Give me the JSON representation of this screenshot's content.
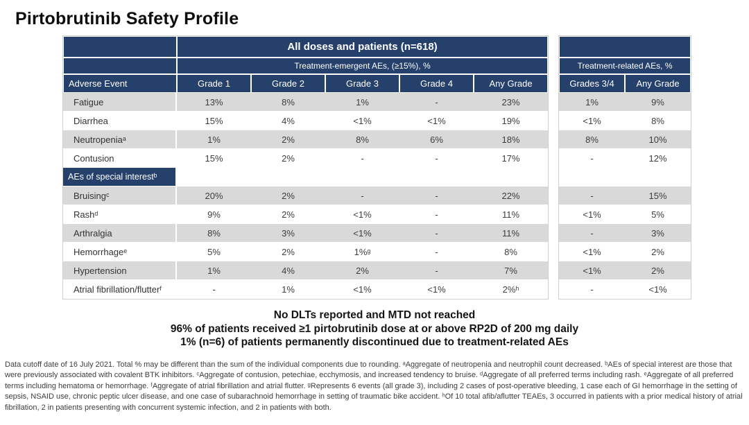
{
  "title": "Pirtobrutinib Safety Profile",
  "colors": {
    "header_navy": "#24406B",
    "stripe_gray": "#D9D9D9"
  },
  "table": {
    "left": {
      "span_header": "All doses and patients (n=618)",
      "sub_header": "Treatment-emergent AEs, (≥15%), %",
      "col_headers": [
        "Adverse Event",
        "Grade 1",
        "Grade 2",
        "Grade 3",
        "Grade 4",
        "Any Grade"
      ]
    },
    "right": {
      "sub_header": "Treatment-related AEs, %",
      "col_headers": [
        "Grades 3/4",
        "Any Grade"
      ]
    },
    "rows": [
      {
        "type": "data",
        "label": "Fatigue",
        "cells": [
          "13%",
          "8%",
          "1%",
          "-",
          "23%"
        ],
        "right": [
          "1%",
          "9%"
        ],
        "shaded": true
      },
      {
        "type": "data",
        "label": "Diarrhea",
        "cells": [
          "15%",
          "4%",
          "<1%",
          "<1%",
          "19%"
        ],
        "right": [
          "<1%",
          "8%"
        ],
        "shaded": false
      },
      {
        "type": "data",
        "label": "Neutropeniaᵃ",
        "cells": [
          "1%",
          "2%",
          "8%",
          "6%",
          "18%"
        ],
        "right": [
          "8%",
          "10%"
        ],
        "shaded": true
      },
      {
        "type": "data",
        "label": "Contusion",
        "cells": [
          "15%",
          "2%",
          "-",
          "-",
          "17%"
        ],
        "right": [
          "-",
          "12%"
        ],
        "shaded": false
      },
      {
        "type": "section",
        "label": "AEs of special interestᵇ"
      },
      {
        "type": "data",
        "label": "Bruisingᶜ",
        "cells": [
          "20%",
          "2%",
          "-",
          "-",
          "22%"
        ],
        "right": [
          "-",
          "15%"
        ],
        "shaded": true
      },
      {
        "type": "data",
        "label": "Rashᵈ",
        "cells": [
          "9%",
          "2%",
          "<1%",
          "-",
          "11%"
        ],
        "right": [
          "<1%",
          "5%"
        ],
        "shaded": false
      },
      {
        "type": "data",
        "label": "Arthralgia",
        "cells": [
          "8%",
          "3%",
          "<1%",
          "-",
          "11%"
        ],
        "right": [
          "-",
          "3%"
        ],
        "shaded": true
      },
      {
        "type": "data",
        "label": "Hemorrhageᵉ",
        "cells": [
          "5%",
          "2%",
          "1%ᵍ",
          "-",
          "8%"
        ],
        "right": [
          "<1%",
          "2%"
        ],
        "shaded": false
      },
      {
        "type": "data",
        "label": "Hypertension",
        "cells": [
          "1%",
          "4%",
          "2%",
          "-",
          "7%"
        ],
        "right": [
          "<1%",
          "2%"
        ],
        "shaded": true
      },
      {
        "type": "data",
        "label": "Atrial fibrillation/flutterᶠ",
        "cells": [
          "-",
          "1%",
          "<1%",
          "<1%",
          "2%ʰ"
        ],
        "right": [
          "-",
          "<1%"
        ],
        "shaded": false
      }
    ]
  },
  "summary": {
    "line1": "No DLTs reported and MTD not reached",
    "line2": "96% of patients received ≥1 pirtobrutinib dose at or above RP2D of 200 mg daily",
    "line3": "1% (n=6) of patients permanently discontinued due to treatment-related AEs"
  },
  "footnote": "Data cutoff date of 16 July 2021. Total % may be different than the sum of the individual components due to rounding. ᵃAggregate of neutropenia and neutrophil count decreased. ᵇAEs of special interest are those that were previously associated with covalent BTK inhibitors. ᶜAggregate of contusion, petechiae, ecchymosis, and increased tendency to bruise. ᵈAggregate of all preferred terms including rash. ᵉAggregate of all preferred terms including hematoma or hemorrhage. ᶠAggregate of atrial fibrillation and atrial flutter. ᵍRepresents 6 events (all grade 3), including 2 cases of post-operative bleeding, 1 case each of GI hemorrhage in the setting of sepsis, NSAID use, chronic peptic ulcer disease, and one case of subarachnoid hemorrhage in setting of traumatic bike accident. ʰOf 10 total afib/aflutter TEAEs, 3 occurred in patients with a prior medical history of atrial fibrillation, 2 in patients presenting with concurrent systemic infection, and 2 in patients with both."
}
